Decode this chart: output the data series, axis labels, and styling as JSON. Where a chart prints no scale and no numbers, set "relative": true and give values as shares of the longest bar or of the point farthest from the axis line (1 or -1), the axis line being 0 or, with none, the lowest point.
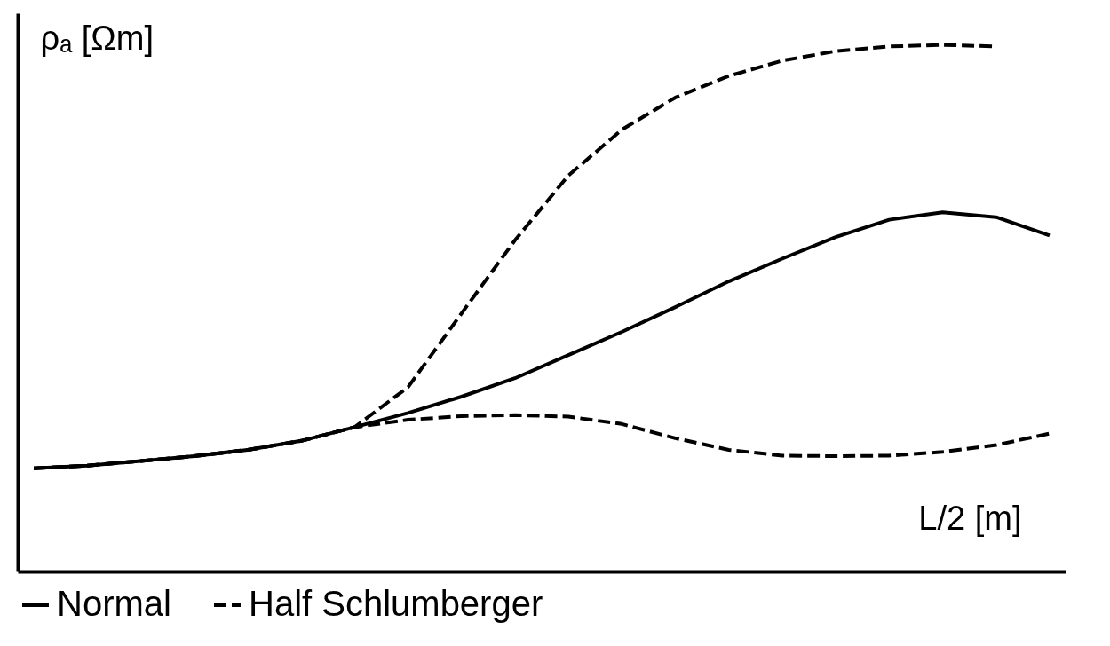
{
  "chart_data": {
    "type": "line",
    "relative": true,
    "xlabel": "L/2 [m]",
    "ylabel": "ρₐ [Ωm]",
    "categories": [
      null,
      null,
      null,
      null,
      null,
      null,
      null,
      null,
      null,
      null,
      null,
      null,
      null,
      null,
      null,
      null,
      null,
      null,
      null,
      null
    ],
    "series": [
      {
        "name": "Normal",
        "color": "#000000",
        "line_style": "solid",
        "values": [
          0.196,
          0.201,
          0.21,
          0.219,
          0.231,
          0.248,
          0.274,
          0.301,
          0.332,
          0.367,
          0.411,
          0.455,
          0.502,
          0.551,
          0.594,
          0.635,
          0.668,
          0.682,
          0.673,
          0.638
        ]
      },
      {
        "name": "Half Schlumberger",
        "color": "#000000",
        "line_style": "dashed",
        "values": [
          0.196,
          0.201,
          0.21,
          0.219,
          0.231,
          0.248,
          0.274,
          0.35,
          0.49,
          0.629,
          0.752,
          0.839,
          0.9,
          0.941,
          0.97,
          0.988,
          0.997,
          1.0,
          0.997,
          null
        ]
      },
      {
        "color": "#000000",
        "line_style": "dashed",
        "values": [
          0.196,
          0.201,
          0.21,
          0.219,
          0.231,
          0.248,
          0.274,
          0.288,
          0.295,
          0.297,
          0.294,
          0.28,
          0.253,
          0.231,
          0.22,
          0.219,
          0.22,
          0.227,
          0.24,
          0.262
        ]
      }
    ],
    "grid": false,
    "marker": "none",
    "legend": "bottom"
  }
}
